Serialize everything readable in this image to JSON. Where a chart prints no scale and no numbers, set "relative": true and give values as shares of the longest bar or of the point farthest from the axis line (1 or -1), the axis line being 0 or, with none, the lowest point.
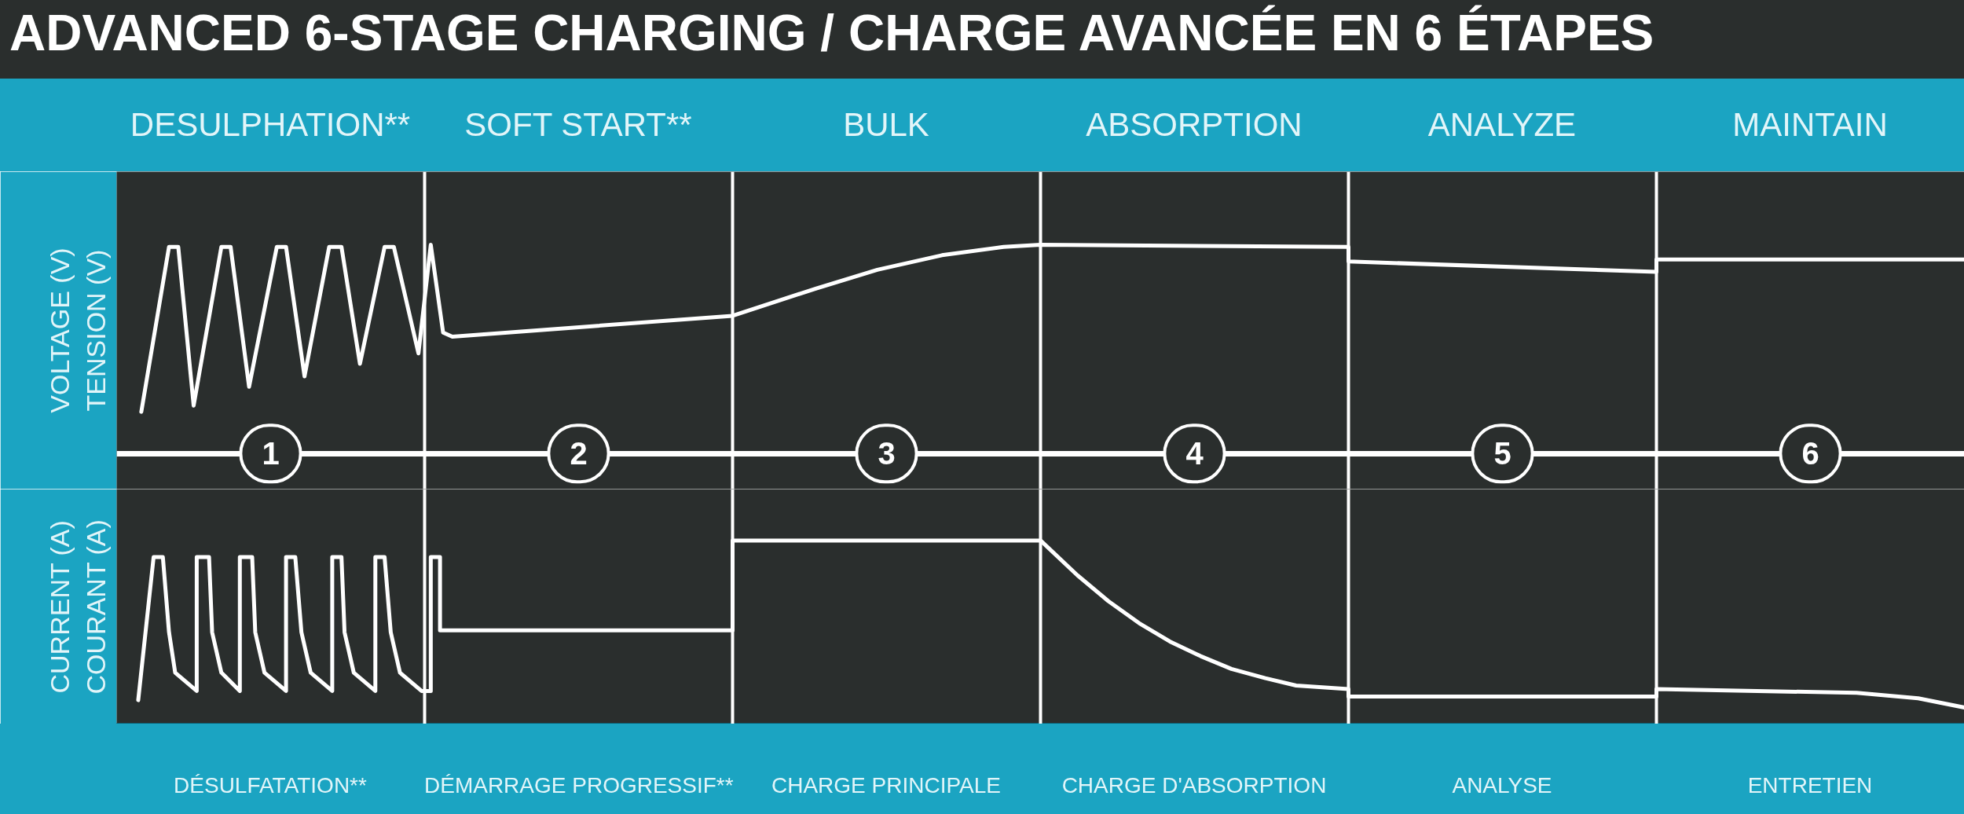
{
  "chart_data": [
    {
      "type": "line",
      "title": "ADVANCED 6-STAGE CHARGING / CHARGE AVANCÉE EN 6 ÉTAPES",
      "ylabel": "VOLTAGE (V)\nTENSION (V)",
      "relative": true,
      "tick_labels": "x",
      "xlim": [
        0.5,
        6.5
      ],
      "xticks": [
        1,
        2,
        3,
        4,
        5,
        6
      ],
      "annotations": [
        "DESULPHATION**",
        "SOFT START**",
        "BULK",
        "ABSORPTION",
        "ANALYZE",
        "MAINTAIN"
      ],
      "ref_lines": [
        {
          "axis": "x",
          "value": 1.5,
          "color": "#ffffff"
        },
        {
          "axis": "x",
          "value": 2.5,
          "color": "#ffffff"
        },
        {
          "axis": "x",
          "value": 3.5,
          "color": "#ffffff"
        },
        {
          "axis": "x",
          "value": 4.5,
          "color": "#ffffff"
        },
        {
          "axis": "x",
          "value": 5.5,
          "color": "#ffffff"
        }
      ],
      "series": [
        {
          "color": "#ffffff",
          "x": [
            0.58,
            0.67,
            0.7,
            0.75,
            0.84,
            0.87,
            0.93,
            1.02,
            1.05,
            1.11,
            1.19,
            1.23,
            1.29,
            1.37,
            1.4,
            1.48,
            1.52,
            1.56,
            1.59,
            2.5,
            2.77,
            2.97,
            3.18,
            3.38,
            3.5,
            4.5,
            4.5,
            5.5,
            5.5,
            6.5
          ],
          "values": [
            0.2,
            0.99,
            0.99,
            0.23,
            0.99,
            0.99,
            0.32,
            0.99,
            0.99,
            0.37,
            0.99,
            0.99,
            0.43,
            0.99,
            0.99,
            0.48,
            1.0,
            0.58,
            0.56,
            0.66,
            0.79,
            0.88,
            0.95,
            0.99,
            1.0,
            0.99,
            0.92,
            0.87,
            0.93,
            0.93
          ]
        }
      ]
    },
    {
      "type": "line",
      "ylabel": "CURRENT (A)\nCOURANT (A)",
      "relative": true,
      "tick_labels": false,
      "xlim": [
        0.5,
        6.5
      ],
      "annotations": [
        "DÉSULFATATION**",
        "DÉMARRAGE PROGRESSIF**",
        "CHARGE PRINCIPALE",
        "CHARGE D'ABSORPTION",
        "ANALYSE",
        "ENTRETIEN"
      ],
      "ref_lines": [
        {
          "axis": "x",
          "value": 1.5,
          "color": "#ffffff"
        },
        {
          "axis": "x",
          "value": 2.5,
          "color": "#ffffff"
        },
        {
          "axis": "x",
          "value": 3.5,
          "color": "#ffffff"
        },
        {
          "axis": "x",
          "value": 4.5,
          "color": "#ffffff"
        },
        {
          "axis": "x",
          "value": 5.5,
          "color": "#ffffff"
        }
      ],
      "series": [
        {
          "color": "#ffffff",
          "x": [
            0.57,
            0.62,
            0.65,
            0.67,
            0.69,
            0.76,
            0.76,
            0.8,
            0.81,
            0.84,
            0.9,
            0.9,
            0.94,
            0.95,
            0.98,
            1.05,
            1.05,
            1.08,
            1.1,
            1.13,
            1.2,
            1.2,
            1.23,
            1.24,
            1.27,
            1.34,
            1.34,
            1.37,
            1.39,
            1.42,
            1.49,
            1.52,
            1.52,
            1.55,
            1.55,
            2.5,
            2.5,
            3.5,
            3.62,
            3.72,
            3.82,
            3.92,
            4.02,
            4.12,
            4.23,
            4.33,
            4.5,
            4.5,
            5.5,
            5.5,
            6.15,
            6.35,
            6.5
          ],
          "values": [
            0.13,
            0.91,
            0.91,
            0.5,
            0.28,
            0.18,
            0.91,
            0.91,
            0.5,
            0.28,
            0.18,
            0.91,
            0.91,
            0.5,
            0.28,
            0.18,
            0.91,
            0.91,
            0.5,
            0.28,
            0.18,
            0.91,
            0.91,
            0.5,
            0.28,
            0.18,
            0.91,
            0.91,
            0.5,
            0.28,
            0.18,
            0.18,
            0.91,
            0.91,
            0.51,
            0.51,
            1.0,
            1.0,
            0.81,
            0.67,
            0.55,
            0.45,
            0.37,
            0.3,
            0.25,
            0.21,
            0.19,
            0.15,
            0.15,
            0.19,
            0.17,
            0.14,
            0.09
          ]
        }
      ]
    }
  ]
}
